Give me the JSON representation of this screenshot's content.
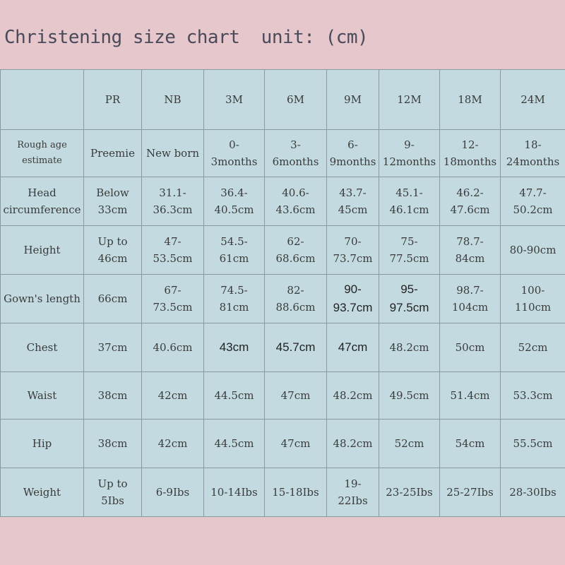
{
  "title": "Christening size chart  unit: (cm)",
  "table": {
    "headers": [
      "",
      "PR",
      "NB",
      "3M",
      "6M",
      "9M",
      "12M",
      "18M",
      "24M"
    ],
    "rows": [
      {
        "label": "Rough age\nestimate",
        "cells": [
          "Preemie",
          "New born",
          "0-\n3months",
          "3-\n6months",
          "6-\n9months",
          "9-\n12months",
          "12-\n18months",
          "18-\n24months"
        ]
      },
      {
        "label": "Head\ncircumference",
        "cells": [
          "Below\n33cm",
          "31.1-\n36.3cm",
          "36.4-\n40.5cm",
          "40.6-\n43.6cm",
          "43.7-\n45cm",
          "45.1-\n46.1cm",
          "46.2-\n47.6cm",
          "47.7-\n50.2cm"
        ]
      },
      {
        "label": "Height",
        "cells": [
          "Up to\n46cm",
          "47-\n53.5cm",
          "54.5-\n61cm",
          "62-\n68.6cm",
          "70-\n73.7cm",
          "75-\n77.5cm",
          "78.7-\n84cm",
          "80-90cm"
        ]
      },
      {
        "label": "Gown's length",
        "cells": [
          "66cm",
          "67-\n73.5cm",
          "74.5-\n81cm",
          "82-\n88.6cm",
          "90-\n93.7cm",
          "95-\n97.5cm",
          "98.7-\n104cm",
          "100-\n110cm"
        ]
      },
      {
        "label": "Chest",
        "cells": [
          "37cm",
          "40.6cm",
          "43cm",
          "45.7cm",
          "47cm",
          "48.2cm",
          "50cm",
          "52cm"
        ]
      },
      {
        "label": "Waist",
        "cells": [
          "38cm",
          "42cm",
          "44.5cm",
          "47cm",
          "48.2cm",
          "49.5cm",
          "51.4cm",
          "53.3cm"
        ]
      },
      {
        "label": "Hip",
        "cells": [
          "38cm",
          "42cm",
          "44.5cm",
          "47cm",
          "48.2cm",
          "52cm",
          "54cm",
          "55.5cm"
        ]
      },
      {
        "label": "Weight",
        "cells": [
          "Up to\n5Ibs",
          "6-9Ibs",
          "10-14Ibs",
          "15-18Ibs",
          "19-\n22Ibs",
          "23-25Ibs",
          "25-27Ibs",
          "28-30Ibs"
        ]
      }
    ]
  }
}
